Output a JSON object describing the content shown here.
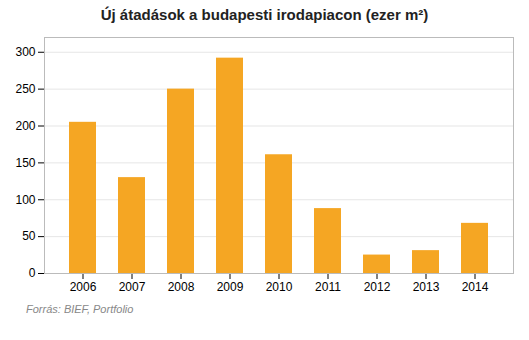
{
  "chart_data": {
    "type": "bar",
    "title": "Új átadások a budapesti irodapiacon (ezer m²)",
    "caption": "Forrás: BIEF, Portfolio",
    "categories": [
      "2006",
      "2007",
      "2008",
      "2009",
      "2010",
      "2011",
      "2012",
      "2013",
      "2014"
    ],
    "values": [
      205,
      130,
      250,
      292,
      161,
      88,
      25,
      31,
      68
    ],
    "color": "#F5A623",
    "ylim": [
      0,
      320
    ],
    "yticks": [
      0,
      50,
      100,
      150,
      200,
      250,
      300
    ],
    "grid": true
  }
}
